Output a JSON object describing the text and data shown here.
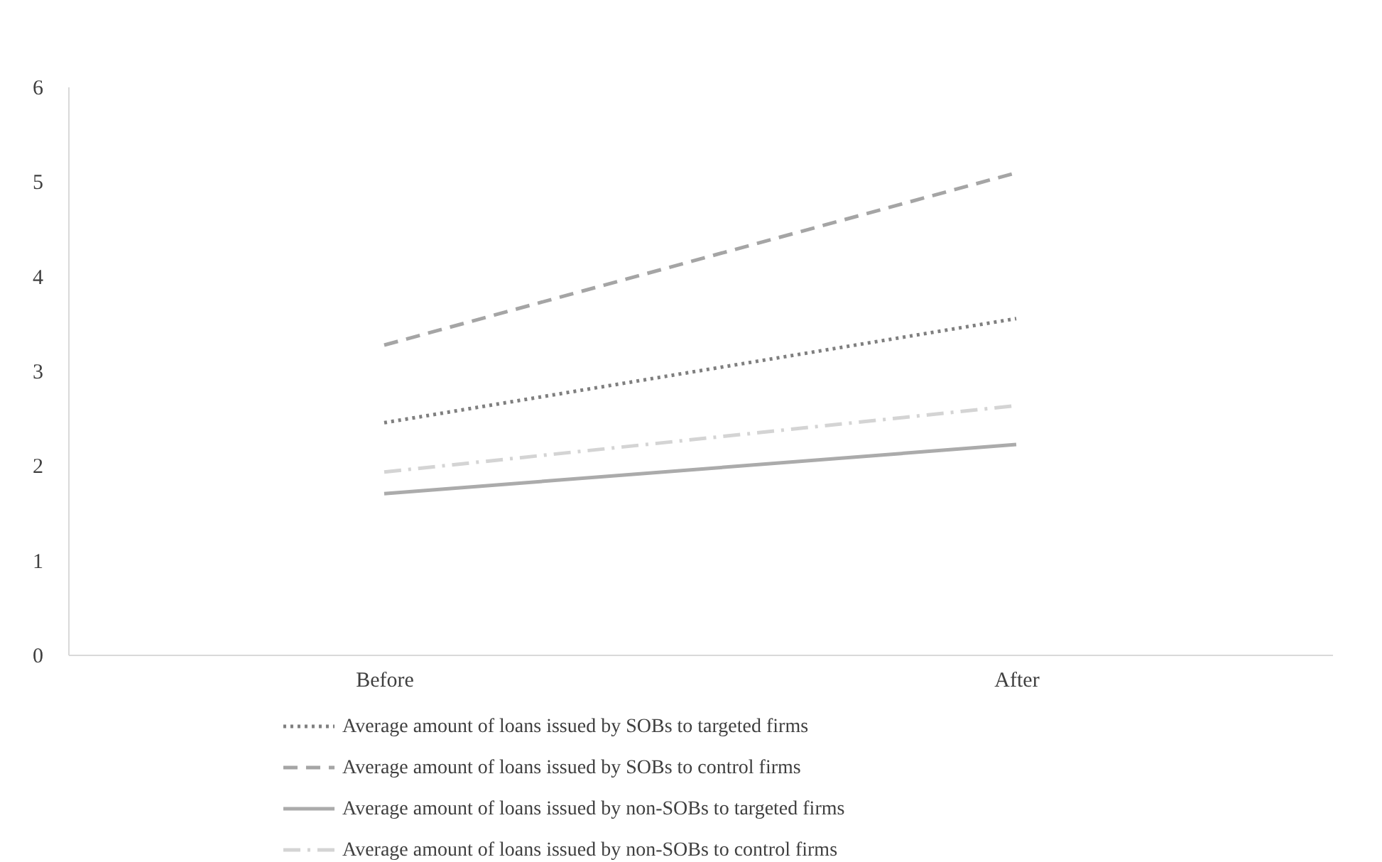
{
  "chart_data": {
    "type": "line",
    "categories": [
      "Before",
      "After"
    ],
    "ylim": [
      0,
      6
    ],
    "yticks": [
      0,
      1,
      2,
      3,
      4,
      5,
      6
    ],
    "grid": false,
    "legend": "bottom",
    "marker": "none",
    "series": [
      {
        "name": "Average amount of loans issued by SOBs to targeted firms",
        "color": "#7f7f7f",
        "line_style": "dotted",
        "values": [
          2.45,
          3.55
        ]
      },
      {
        "name": "Average amount of loans issued by SOBs to control firms",
        "color": "#a5a5a5",
        "line_style": "dashed",
        "values": [
          3.27,
          5.09
        ]
      },
      {
        "name": "Average amount of loans issued by non-SOBs to targeted firms",
        "color": "#ababab",
        "line_style": "solid",
        "values": [
          1.7,
          2.22
        ]
      },
      {
        "name": "Average amount of loans issued by non-SOBs to control firms",
        "color": "#d4d4d4",
        "line_style": "dashdot",
        "values": [
          1.93,
          2.63
        ]
      }
    ]
  }
}
